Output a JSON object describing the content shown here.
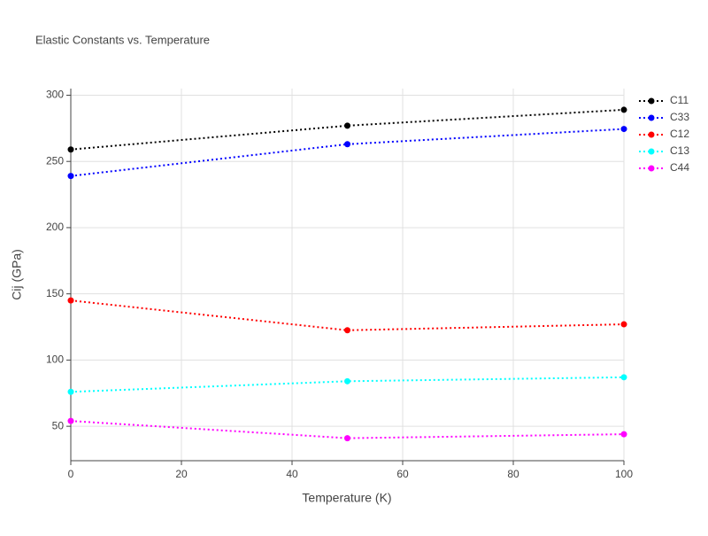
{
  "chart_data": {
    "type": "line",
    "title": "Elastic Constants vs. Temperature",
    "x_label": "Temperature (K)",
    "y_label": "Cij (GPa)",
    "x": [
      0,
      50,
      100
    ],
    "series": [
      {
        "name": "C11",
        "color": "#000000",
        "values": [
          259,
          277,
          289
        ]
      },
      {
        "name": "C33",
        "color": "#0000ff",
        "values": [
          239,
          263,
          274.5
        ]
      },
      {
        "name": "C12",
        "color": "#ff0000",
        "values": [
          145,
          122.5,
          127
        ]
      },
      {
        "name": "C13",
        "color": "#00ffff",
        "values": [
          76,
          84,
          87
        ]
      },
      {
        "name": "C44",
        "color": "#ff00ff",
        "values": [
          54,
          41,
          44
        ]
      }
    ],
    "xlim": [
      0,
      100
    ],
    "xticks": [
      0,
      20,
      40,
      60,
      80,
      100
    ],
    "ylim": [
      24,
      305
    ],
    "yticks": [
      50,
      100,
      150,
      200,
      250,
      300
    ],
    "grid": true,
    "legend": "right"
  }
}
